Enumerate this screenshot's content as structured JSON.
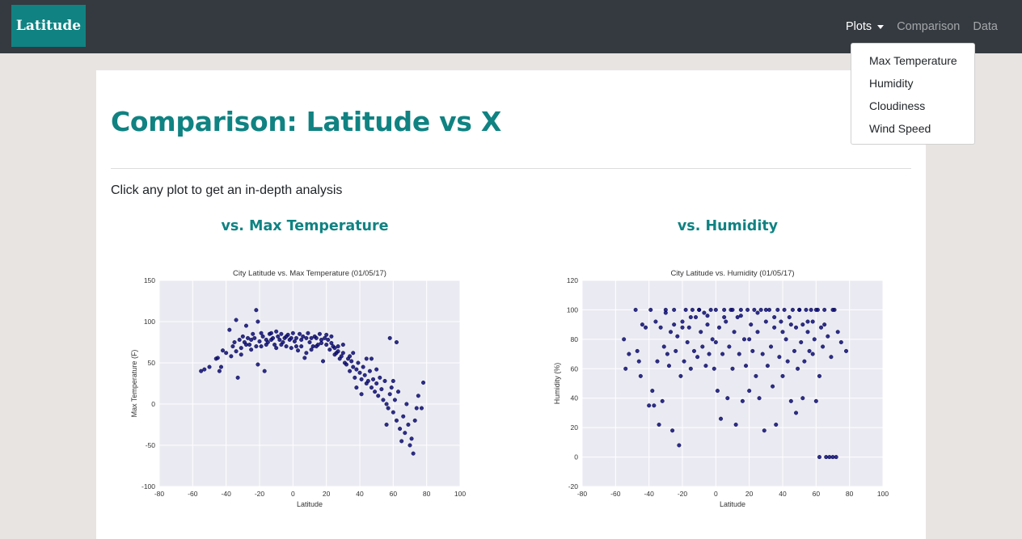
{
  "navbar": {
    "brand": "Latitude",
    "links": [
      {
        "label": "Plots",
        "active": true
      },
      {
        "label": "Comparison",
        "active": false
      },
      {
        "label": "Data",
        "active": false
      }
    ],
    "dropdown": [
      "Max Temperature",
      "Humidity",
      "Cloudiness",
      "Wind Speed"
    ]
  },
  "page": {
    "title": "Comparison: Latitude vs X",
    "intro": "Click any plot to get an in-depth analysis"
  },
  "plots": [
    {
      "heading": "vs. Max Temperature"
    },
    {
      "heading": "vs. Humidity"
    }
  ],
  "colors": {
    "accent": "#108282",
    "navbar": "#343a40",
    "marker": "#0b0b7a",
    "plot_bg": "#eaeaf2"
  },
  "chart_data": [
    {
      "type": "scatter",
      "title": "City Latitude vs. Max Temperature (01/05/17)",
      "xlabel": "Latitude",
      "ylabel": "Max Temperature (F)",
      "xlim": [
        -80,
        100
      ],
      "ylim": [
        -100,
        150
      ],
      "xticks": [
        -80,
        -60,
        -40,
        -20,
        0,
        20,
        40,
        60,
        80,
        100
      ],
      "yticks": [
        -100,
        -50,
        0,
        50,
        100,
        150
      ],
      "grid": true,
      "points": [
        [
          -55,
          40
        ],
        [
          -53,
          42
        ],
        [
          -50,
          45
        ],
        [
          -46,
          55
        ],
        [
          -45,
          56
        ],
        [
          -44,
          40
        ],
        [
          -43,
          45
        ],
        [
          -42,
          65
        ],
        [
          -40,
          62
        ],
        [
          -38,
          90
        ],
        [
          -36,
          70
        ],
        [
          -35,
          75
        ],
        [
          -34,
          102
        ],
        [
          -33,
          32
        ],
        [
          -32,
          78
        ],
        [
          -31,
          68
        ],
        [
          -30,
          82
        ],
        [
          -29,
          75
        ],
        [
          -28,
          95
        ],
        [
          -27,
          80
        ],
        [
          -26,
          72
        ],
        [
          -25,
          78
        ],
        [
          -24,
          85
        ],
        [
          -23,
          80
        ],
        [
          -22,
          114
        ],
        [
          -21,
          48
        ],
        [
          -21,
          100
        ],
        [
          -20,
          76
        ],
        [
          -19,
          70
        ],
        [
          -18,
          82
        ],
        [
          -17,
          40
        ],
        [
          -16,
          78
        ],
        [
          -15,
          75
        ],
        [
          -14,
          85
        ],
        [
          -13,
          78
        ],
        [
          -12,
          80
        ],
        [
          -11,
          72
        ],
        [
          -10,
          88
        ],
        [
          -9,
          82
        ],
        [
          -8,
          78
        ],
        [
          -7,
          85
        ],
        [
          -6,
          75
        ],
        [
          -5,
          80
        ],
        [
          -4,
          70
        ],
        [
          -3,
          84
        ],
        [
          -2,
          78
        ],
        [
          -1,
          80
        ],
        [
          0,
          86
        ],
        [
          1,
          76
        ],
        [
          2,
          80
        ],
        [
          3,
          65
        ],
        [
          4,
          85
        ],
        [
          5,
          78
        ],
        [
          6,
          82
        ],
        [
          7,
          56
        ],
        [
          8,
          80
        ],
        [
          9,
          86
        ],
        [
          10,
          75
        ],
        [
          11,
          80
        ],
        [
          12,
          70
        ],
        [
          13,
          82
        ],
        [
          14,
          80
        ],
        [
          15,
          72
        ],
        [
          16,
          85
        ],
        [
          17,
          78
        ],
        [
          18,
          52
        ],
        [
          19,
          80
        ],
        [
          20,
          72
        ],
        [
          21,
          78
        ],
        [
          22,
          66
        ],
        [
          23,
          74
        ],
        [
          24,
          70
        ],
        [
          25,
          68
        ],
        [
          26,
          62
        ],
        [
          27,
          64
        ],
        [
          28,
          55
        ],
        [
          29,
          58
        ],
        [
          30,
          62
        ],
        [
          31,
          50
        ],
        [
          32,
          48
        ],
        [
          33,
          55
        ],
        [
          34,
          40
        ],
        [
          35,
          52
        ],
        [
          36,
          45
        ],
        [
          37,
          32
        ],
        [
          38,
          42
        ],
        [
          39,
          50
        ],
        [
          40,
          38
        ],
        [
          41,
          30
        ],
        [
          42,
          45
        ],
        [
          43,
          35
        ],
        [
          44,
          25
        ],
        [
          45,
          28
        ],
        [
          46,
          40
        ],
        [
          47,
          20
        ],
        [
          48,
          30
        ],
        [
          49,
          15
        ],
        [
          50,
          25
        ],
        [
          51,
          10
        ],
        [
          52,
          32
        ],
        [
          53,
          18
        ],
        [
          54,
          5
        ],
        [
          55,
          28
        ],
        [
          56,
          0
        ],
        [
          57,
          -5
        ],
        [
          58,
          12
        ],
        [
          59,
          20
        ],
        [
          60,
          -10
        ],
        [
          61,
          5
        ],
        [
          62,
          -20
        ],
        [
          63,
          15
        ],
        [
          64,
          -30
        ],
        [
          65,
          -45
        ],
        [
          66,
          -15
        ],
        [
          67,
          -35
        ],
        [
          68,
          0
        ],
        [
          69,
          -25
        ],
        [
          70,
          -50
        ],
        [
          71,
          -42
        ],
        [
          72,
          -60
        ],
        [
          73,
          -20
        ],
        [
          74,
          -5
        ],
        [
          75,
          10
        ],
        [
          77,
          -5
        ],
        [
          78,
          26
        ],
        [
          56,
          -25
        ],
        [
          58,
          80
        ],
        [
          62,
          75
        ],
        [
          60,
          28
        ],
        [
          50,
          42
        ],
        [
          47,
          55
        ],
        [
          44,
          55
        ],
        [
          41,
          12
        ],
        [
          38,
          20
        ],
        [
          36,
          62
        ],
        [
          34,
          58
        ],
        [
          30,
          72
        ],
        [
          27,
          70
        ],
        [
          25,
          60
        ],
        [
          23,
          82
        ],
        [
          20,
          84
        ],
        [
          17,
          74
        ],
        [
          14,
          70
        ],
        [
          11,
          66
        ],
        [
          8,
          62
        ],
        [
          5,
          70
        ],
        [
          2,
          70
        ],
        [
          -1,
          68
        ],
        [
          -4,
          82
        ],
        [
          -7,
          72
        ],
        [
          -10,
          68
        ],
        [
          -13,
          86
        ],
        [
          -16,
          72
        ],
        [
          -19,
          86
        ],
        [
          -22,
          70
        ],
        [
          -25,
          66
        ],
        [
          -28,
          72
        ],
        [
          -31,
          60
        ],
        [
          -34,
          64
        ],
        [
          -37,
          58
        ]
      ]
    },
    {
      "type": "scatter",
      "title": "City Latitude vs. Humidity (01/05/17)",
      "xlabel": "Latitude",
      "ylabel": "Humidity (%)",
      "xlim": [
        -80,
        100
      ],
      "ylim": [
        -20,
        120
      ],
      "xticks": [
        -80,
        -60,
        -40,
        -20,
        0,
        20,
        40,
        60,
        80,
        100
      ],
      "yticks": [
        -20,
        0,
        20,
        40,
        60,
        80,
        100,
        120
      ],
      "grid": true,
      "points": [
        [
          -55,
          80
        ],
        [
          -54,
          60
        ],
        [
          -52,
          70
        ],
        [
          -48,
          100
        ],
        [
          -47,
          72
        ],
        [
          -46,
          65
        ],
        [
          -45,
          55
        ],
        [
          -44,
          90
        ],
        [
          -42,
          88
        ],
        [
          -40,
          35
        ],
        [
          -39,
          100
        ],
        [
          -38,
          45
        ],
        [
          -37,
          35
        ],
        [
          -36,
          92
        ],
        [
          -35,
          65
        ],
        [
          -34,
          22
        ],
        [
          -33,
          88
        ],
        [
          -32,
          38
        ],
        [
          -31,
          75
        ],
        [
          -30,
          98
        ],
        [
          -29,
          70
        ],
        [
          -28,
          62
        ],
        [
          -27,
          85
        ],
        [
          -26,
          18
        ],
        [
          -25,
          100
        ],
        [
          -24,
          72
        ],
        [
          -23,
          82
        ],
        [
          -22,
          8
        ],
        [
          -21,
          55
        ],
        [
          -20,
          92
        ],
        [
          -19,
          65
        ],
        [
          -18,
          100
        ],
        [
          -17,
          78
        ],
        [
          -16,
          88
        ],
        [
          -15,
          60
        ],
        [
          -14,
          100
        ],
        [
          -13,
          72
        ],
        [
          -12,
          95
        ],
        [
          -11,
          68
        ],
        [
          -10,
          100
        ],
        [
          -9,
          85
        ],
        [
          -8,
          75
        ],
        [
          -7,
          98
        ],
        [
          -6,
          62
        ],
        [
          -5,
          90
        ],
        [
          -4,
          70
        ],
        [
          -3,
          100
        ],
        [
          -2,
          80
        ],
        [
          -1,
          60
        ],
        [
          0,
          100
        ],
        [
          1,
          45
        ],
        [
          2,
          88
        ],
        [
          3,
          26
        ],
        [
          4,
          70
        ],
        [
          5,
          100
        ],
        [
          6,
          92
        ],
        [
          7,
          40
        ],
        [
          8,
          75
        ],
        [
          9,
          100
        ],
        [
          10,
          60
        ],
        [
          11,
          85
        ],
        [
          12,
          22
        ],
        [
          13,
          95
        ],
        [
          14,
          70
        ],
        [
          15,
          100
        ],
        [
          16,
          38
        ],
        [
          17,
          80
        ],
        [
          18,
          62
        ],
        [
          19,
          100
        ],
        [
          20,
          45
        ],
        [
          21,
          90
        ],
        [
          22,
          72
        ],
        [
          23,
          100
        ],
        [
          24,
          55
        ],
        [
          25,
          85
        ],
        [
          26,
          40
        ],
        [
          27,
          100
        ],
        [
          28,
          70
        ],
        [
          29,
          18
        ],
        [
          30,
          92
        ],
        [
          31,
          62
        ],
        [
          32,
          100
        ],
        [
          33,
          75
        ],
        [
          34,
          48
        ],
        [
          35,
          88
        ],
        [
          36,
          22
        ],
        [
          37,
          100
        ],
        [
          38,
          68
        ],
        [
          39,
          92
        ],
        [
          40,
          55
        ],
        [
          41,
          100
        ],
        [
          42,
          80
        ],
        [
          43,
          65
        ],
        [
          44,
          95
        ],
        [
          45,
          38
        ],
        [
          46,
          100
        ],
        [
          47,
          72
        ],
        [
          48,
          88
        ],
        [
          49,
          60
        ],
        [
          50,
          100
        ],
        [
          51,
          78
        ],
        [
          52,
          90
        ],
        [
          53,
          65
        ],
        [
          54,
          100
        ],
        [
          55,
          85
        ],
        [
          56,
          72
        ],
        [
          57,
          100
        ],
        [
          58,
          92
        ],
        [
          59,
          80
        ],
        [
          60,
          38
        ],
        [
          61,
          100
        ],
        [
          62,
          0
        ],
        [
          63,
          88
        ],
        [
          64,
          75
        ],
        [
          65,
          100
        ],
        [
          66,
          0
        ],
        [
          67,
          82
        ],
        [
          68,
          0
        ],
        [
          69,
          68
        ],
        [
          70,
          0
        ],
        [
          71,
          100
        ],
        [
          72,
          0
        ],
        [
          73,
          85
        ],
        [
          75,
          78
        ],
        [
          78,
          72
        ],
        [
          -30,
          100
        ],
        [
          -10,
          100
        ],
        [
          10,
          100
        ],
        [
          30,
          100
        ],
        [
          50,
          100
        ],
        [
          60,
          100
        ],
        [
          70,
          100
        ],
        [
          40,
          85
        ],
        [
          20,
          80
        ],
        [
          0,
          78
        ],
        [
          -20,
          88
        ],
        [
          45,
          90
        ],
        [
          55,
          92
        ],
        [
          65,
          90
        ],
        [
          35,
          95
        ],
        [
          25,
          98
        ],
        [
          15,
          96
        ],
        [
          5,
          95
        ],
        [
          -5,
          96
        ],
        [
          -15,
          95
        ],
        [
          -25,
          90
        ],
        [
          48,
          30
        ],
        [
          52,
          40
        ],
        [
          58,
          70
        ],
        [
          62,
          55
        ]
      ]
    }
  ]
}
